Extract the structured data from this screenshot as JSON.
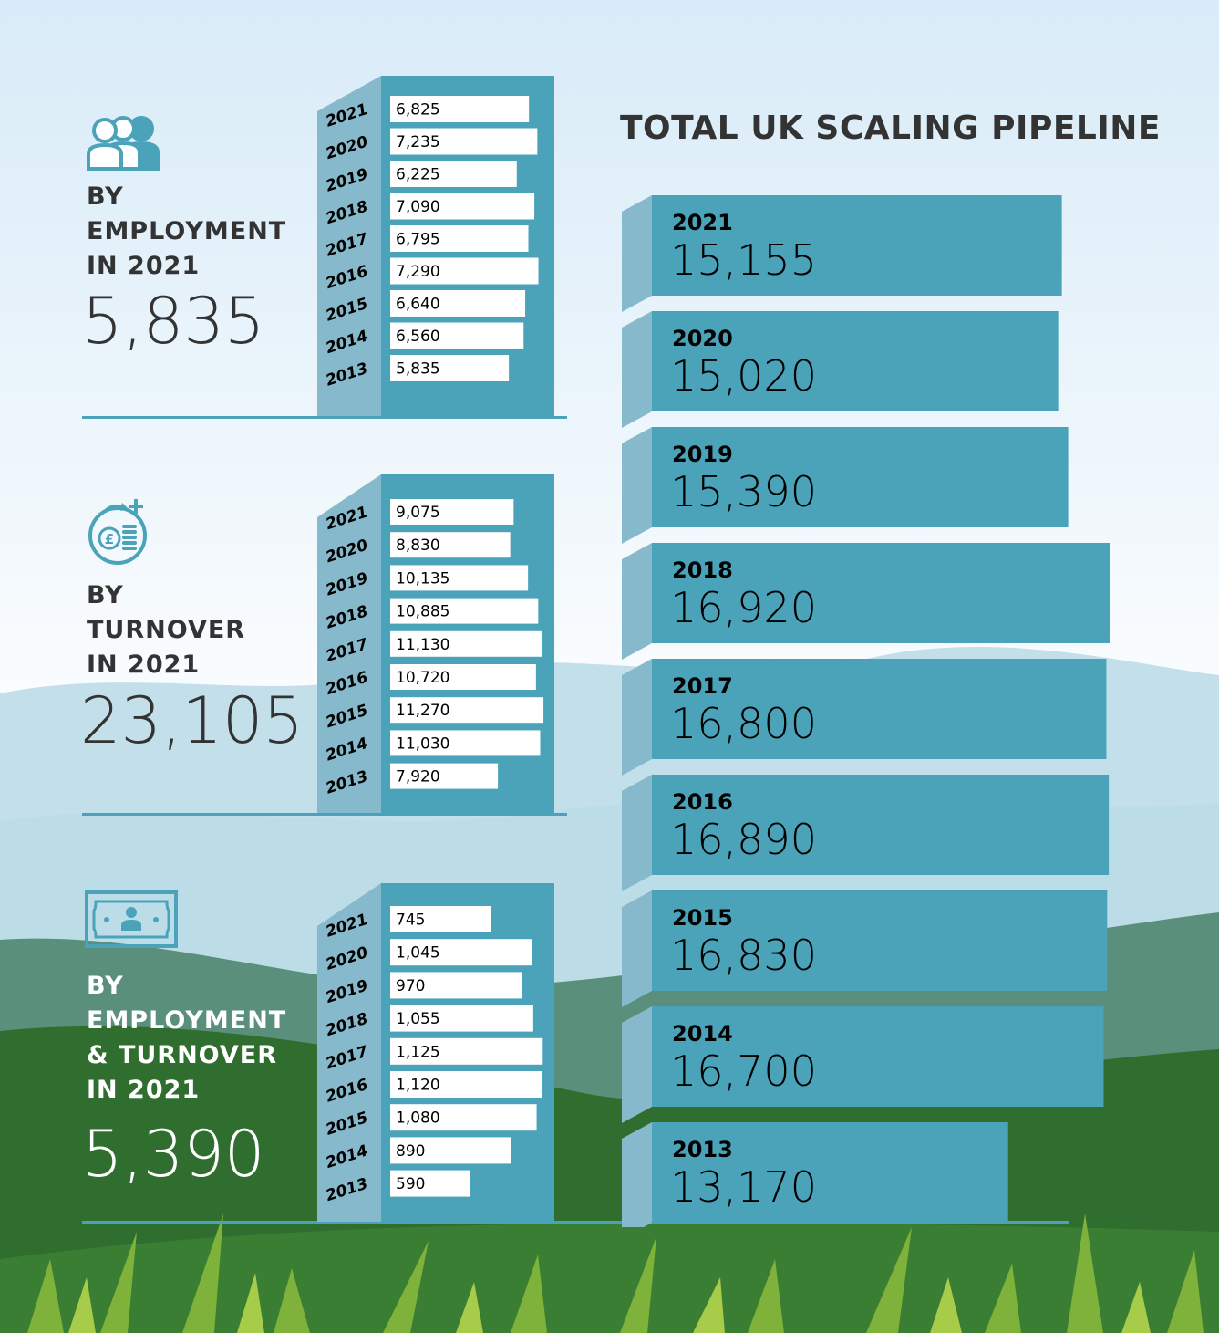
{
  "title": "TOTAL UK SCALING PIPELINE",
  "colors": {
    "bar_face": "#4aa3b9",
    "bar_side": "#86b9cb",
    "sky_top": "#d9ecf8",
    "grass": "#2f6e2e"
  },
  "icons": [
    "people-icon",
    "money-growth-icon",
    "banknote-person-icon"
  ],
  "panels": [
    {
      "label_lines": [
        "BY",
        "EMPLOYMENT",
        "IN 2021"
      ],
      "total": "5,835",
      "light": false
    },
    {
      "label_lines": [
        "BY",
        "TURNOVER",
        "IN 2021"
      ],
      "total": "23,105",
      "light": false
    },
    {
      "label_lines": [
        "BY",
        "EMPLOYMENT",
        "& TURNOVER",
        "IN 2021"
      ],
      "total": "5,390",
      "light": true
    }
  ],
  "chart_data": [
    {
      "type": "bar",
      "categories": [
        "2021",
        "2020",
        "2019",
        "2018",
        "2017",
        "2016",
        "2015",
        "2014",
        "2013"
      ],
      "values": [
        6825,
        7235,
        6225,
        7090,
        6795,
        7290,
        6640,
        6560,
        5835
      ],
      "value_labels": [
        "6,825",
        "7,235",
        "6,225",
        "7,090",
        "6,795",
        "7,290",
        "6,640",
        "6,560",
        "5,835"
      ]
    },
    {
      "type": "bar",
      "categories": [
        "2021",
        "2020",
        "2019",
        "2018",
        "2017",
        "2016",
        "2015",
        "2014",
        "2013"
      ],
      "values": [
        9075,
        8830,
        10135,
        10885,
        11130,
        10720,
        11270,
        11030,
        7920
      ],
      "value_labels": [
        "9,075",
        "8,830",
        "10,135",
        "10,885",
        "11,130",
        "10,720",
        "11,270",
        "11,030",
        "7,920"
      ]
    },
    {
      "type": "bar",
      "categories": [
        "2021",
        "2020",
        "2019",
        "2018",
        "2017",
        "2016",
        "2015",
        "2014",
        "2013"
      ],
      "values": [
        745,
        1045,
        970,
        1055,
        1125,
        1120,
        1080,
        890,
        590
      ],
      "value_labels": [
        "745",
        "1,045",
        "970",
        "1,055",
        "1,125",
        "1,120",
        "1,080",
        "890",
        "590"
      ]
    },
    {
      "type": "bar",
      "title": "TOTAL UK SCALING PIPELINE",
      "categories": [
        "2021",
        "2020",
        "2019",
        "2018",
        "2017",
        "2016",
        "2015",
        "2014",
        "2013"
      ],
      "values": [
        15155,
        15020,
        15390,
        16920,
        16800,
        16890,
        16830,
        16700,
        13170
      ],
      "value_labels": [
        "15,155",
        "15,020",
        "15,390",
        "16,920",
        "16,800",
        "16,890",
        "16,830",
        "16,700",
        "13,170"
      ]
    }
  ]
}
